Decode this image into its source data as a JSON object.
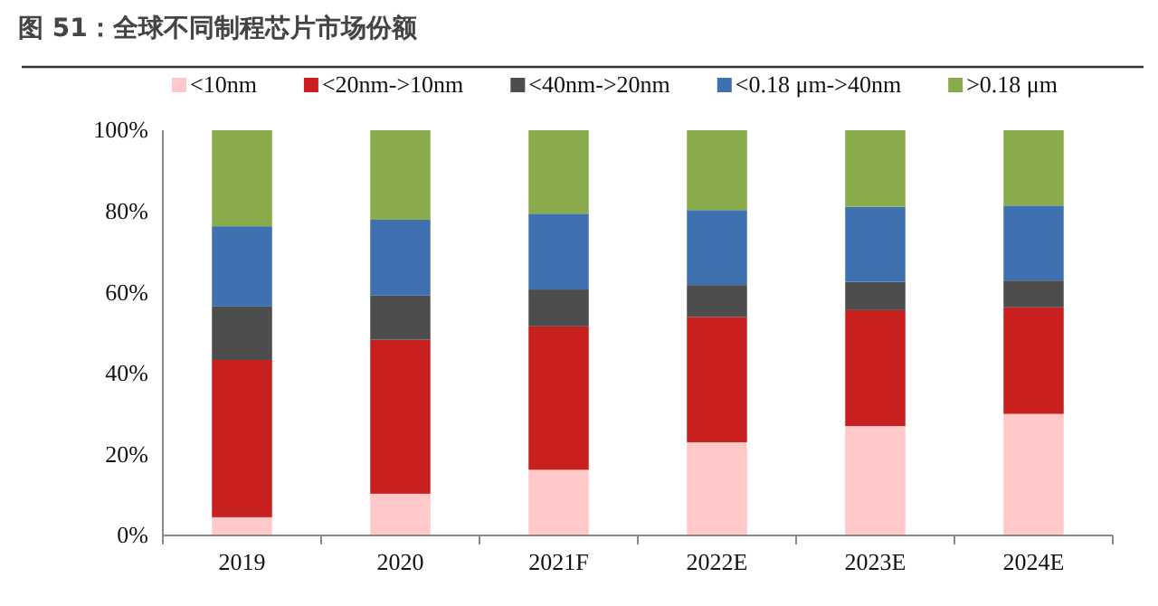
{
  "chart_data": {
    "type": "bar",
    "title": "图 51：全球不同制程芯片市场份额",
    "stacked": true,
    "legend": "top",
    "categories": [
      "2019",
      "2020",
      "2021F",
      "2022E",
      "2023E",
      "2024E"
    ],
    "series": [
      {
        "name": "<10nm",
        "color": "#ffc9c9",
        "values": [
          4.5,
          10.3,
          16.2,
          23.0,
          27.0,
          30.0
        ]
      },
      {
        "name": "<20nm->10nm",
        "color": "#c8201f",
        "values": [
          38.8,
          38.0,
          35.4,
          30.9,
          28.6,
          26.3
        ]
      },
      {
        "name": "<40nm->20nm",
        "color": "#4d4d4d",
        "values": [
          13.2,
          10.9,
          9.1,
          7.9,
          7.0,
          6.6
        ]
      },
      {
        "name": "<0.18 μm->40nm",
        "color": "#3f70b0",
        "values": [
          19.8,
          18.7,
          18.7,
          18.5,
          18.5,
          18.5
        ]
      },
      {
        "name": ">0.18 μm",
        "color": "#8aab4c",
        "values": [
          23.7,
          22.1,
          20.6,
          19.7,
          18.9,
          18.6
        ]
      }
    ],
    "ylim": [
      0,
      100
    ],
    "yticks": [
      {
        "value": 0,
        "label": "0%"
      },
      {
        "value": 20,
        "label": "20%"
      },
      {
        "value": 40,
        "label": "40%"
      },
      {
        "value": 60,
        "label": "60%"
      },
      {
        "value": 80,
        "label": "80%"
      },
      {
        "value": 100,
        "label": "100%"
      }
    ],
    "grid": false
  }
}
